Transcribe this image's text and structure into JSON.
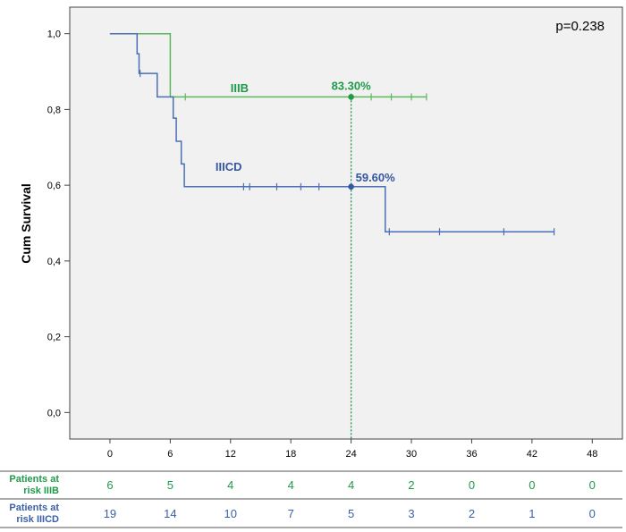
{
  "chart_data": {
    "type": "line",
    "subtype": "kaplan-meier",
    "title": "",
    "xlabel": "",
    "ylabel": "Cum Survival",
    "xlim": [
      -4,
      51
    ],
    "ylim": [
      -0.07,
      1.07
    ],
    "x_ticks": [
      0,
      6,
      12,
      18,
      24,
      30,
      36,
      42,
      48
    ],
    "y_ticks": [
      {
        "value": 0.0,
        "label": "0,0"
      },
      {
        "value": 0.2,
        "label": "0,2"
      },
      {
        "value": 0.4,
        "label": "0,4"
      },
      {
        "value": 0.6,
        "label": "0,6"
      },
      {
        "value": 0.8,
        "label": "0,8"
      },
      {
        "value": 1.0,
        "label": "1,0"
      }
    ],
    "p_value": "p=0.238",
    "reference_line": {
      "x": 24,
      "style": "dotted",
      "color": "#1e8c4e"
    },
    "series": [
      {
        "name": "IIIB",
        "color": "#5cb85c",
        "label_color": "#1e9b4a",
        "label_at": [
          12,
          0.846
        ],
        "steps": [
          [
            0,
            1.0
          ],
          [
            6,
            1.0
          ],
          [
            6,
            0.833
          ],
          [
            31.5,
            0.833
          ]
        ],
        "censored": [
          7.5,
          24,
          26,
          28,
          30,
          31.5
        ],
        "annotation": {
          "x": 24,
          "y": 0.833,
          "text": "83.30%"
        }
      },
      {
        "name": "IIICD",
        "color": "#4a6fb5",
        "label_color": "#3558a0",
        "label_at": [
          10.5,
          0.638
        ],
        "steps": [
          [
            0,
            1.0
          ],
          [
            2.7,
            1.0
          ],
          [
            2.7,
            0.947
          ],
          [
            2.9,
            0.947
          ],
          [
            2.9,
            0.895
          ],
          [
            4.7,
            0.895
          ],
          [
            4.7,
            0.833
          ],
          [
            6.3,
            0.833
          ],
          [
            6.3,
            0.777
          ],
          [
            6.6,
            0.777
          ],
          [
            6.6,
            0.716
          ],
          [
            7.1,
            0.716
          ],
          [
            7.1,
            0.656
          ],
          [
            7.4,
            0.656
          ],
          [
            7.4,
            0.596
          ],
          [
            27.4,
            0.596
          ],
          [
            27.4,
            0.477
          ],
          [
            44.2,
            0.477
          ]
        ],
        "censored": [
          3.0,
          13.3,
          13.9,
          16.6,
          19.0,
          20.8,
          24.0,
          27.8,
          32.8,
          39.2,
          44.2
        ],
        "annotation": {
          "x": 24,
          "y": 0.596,
          "text": "59.60%"
        }
      }
    ],
    "risk_table": [
      {
        "label_line1": "Patients at",
        "label_line2": "risk IIIB",
        "color": "#1e9b4a",
        "values": [
          6,
          5,
          4,
          4,
          4,
          2,
          0,
          0,
          0
        ]
      },
      {
        "label_line1": "Patients at",
        "label_line2": "risk IIICD",
        "color": "#3a5fa8",
        "values": [
          19,
          14,
          10,
          7,
          5,
          3,
          2,
          1,
          0
        ]
      }
    ]
  }
}
